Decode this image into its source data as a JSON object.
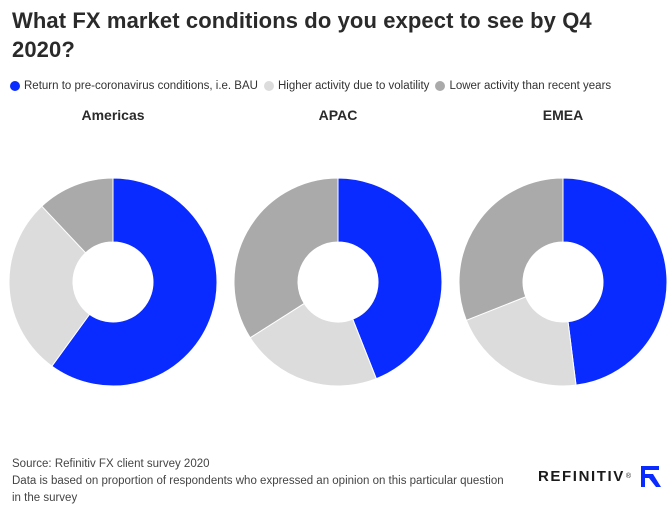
{
  "title": "What FX market conditions do you expect to see by Q4 2020?",
  "legend": [
    {
      "label": "Return to pre-coronavirus conditions, i.e. BAU",
      "color": "#0a2bff"
    },
    {
      "label": "Higher activity due to volatility",
      "color": "#dcdcdc"
    },
    {
      "label": "Lower activity than recent years",
      "color": "#aaaaaa"
    }
  ],
  "chart_data": [
    {
      "type": "pie",
      "subtype": "donut",
      "title": "Americas",
      "labels": [
        "Return to pre-coronavirus conditions, i.e. BAU",
        "Higher activity due to volatility",
        "Lower activity than recent years"
      ],
      "values": [
        60,
        28,
        12
      ]
    },
    {
      "type": "pie",
      "subtype": "donut",
      "title": "APAC",
      "labels": [
        "Return to pre-coronavirus conditions, i.e. BAU",
        "Higher activity due to volatility",
        "Lower activity than recent years"
      ],
      "values": [
        44,
        22,
        34
      ]
    },
    {
      "type": "pie",
      "subtype": "donut",
      "title": "EMEA",
      "labels": [
        "Return to pre-coronavirus conditions, i.e. BAU",
        "Higher activity due to volatility",
        "Lower activity than recent years"
      ],
      "values": [
        48,
        21,
        31
      ]
    }
  ],
  "footer": {
    "source": "Source: Refinitiv FX client survey 2020",
    "note": "Data is based on proportion of respondents who expressed an opinion on this particular question in the survey"
  },
  "brand": {
    "name": "REFINITIV",
    "tm": "®",
    "accent": "#0a2bff"
  }
}
